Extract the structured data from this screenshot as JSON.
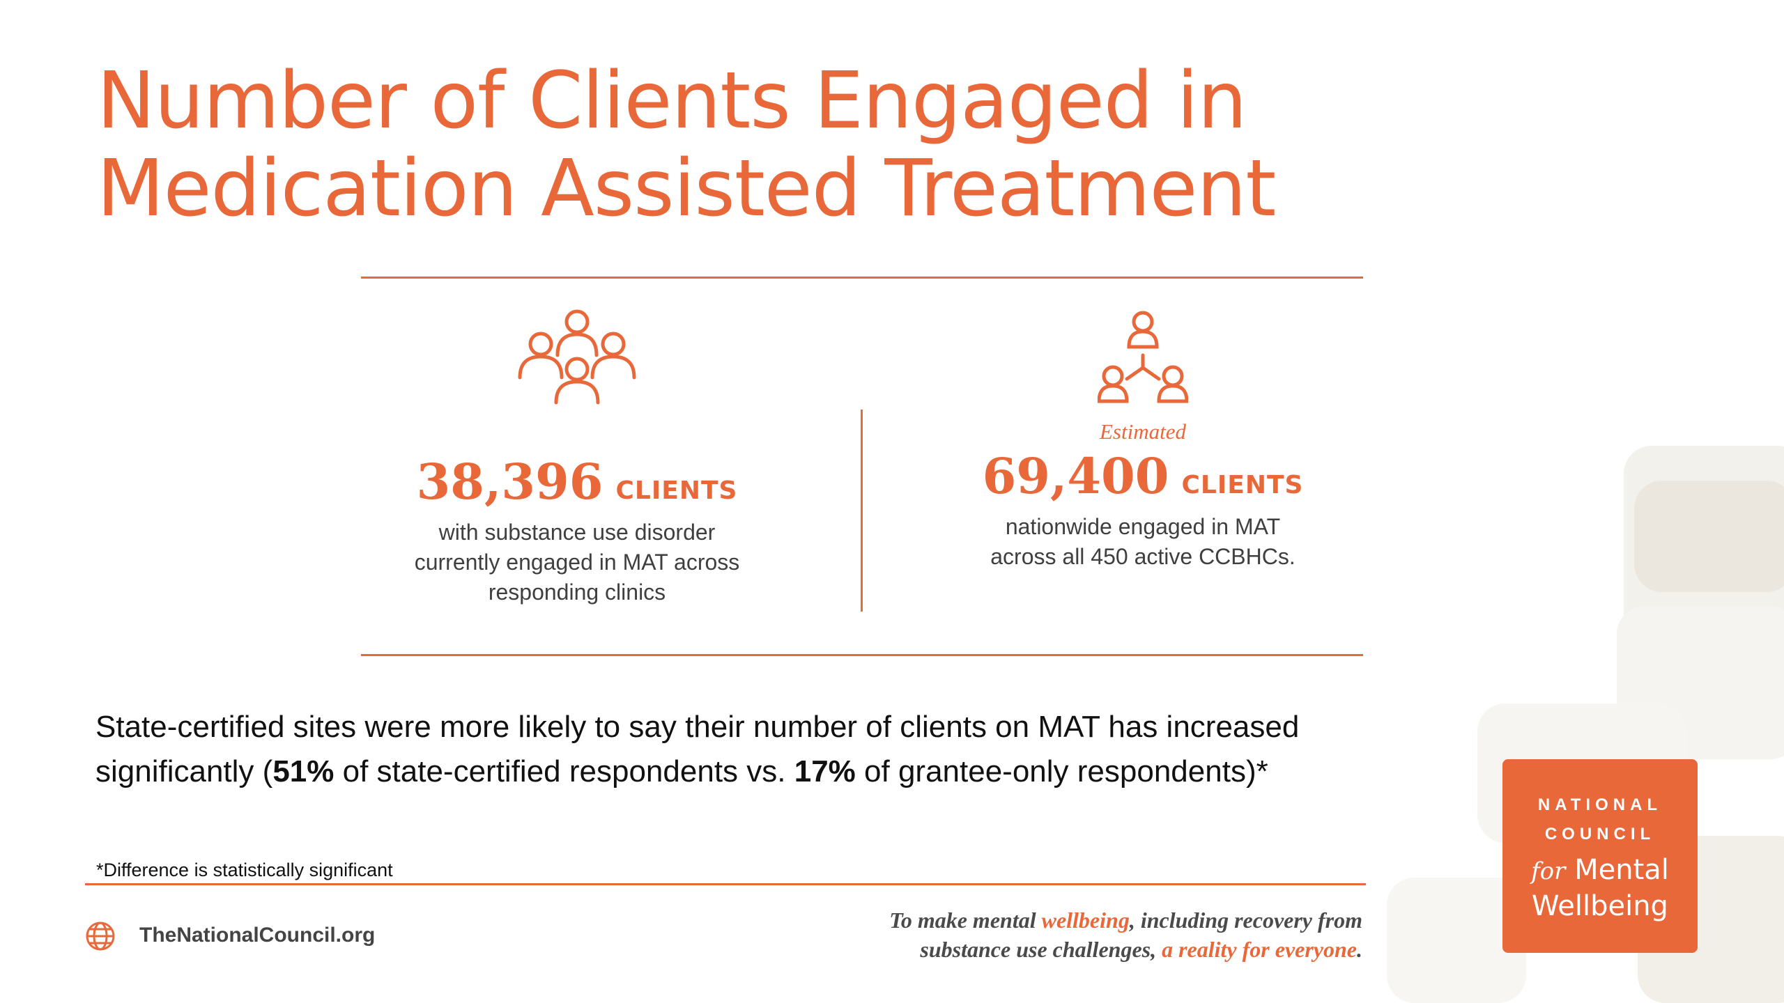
{
  "title": "Number of Clients Engaged in Medication Assisted Treatment",
  "left_stat": {
    "icon": "group-people-icon",
    "value": "38,396",
    "unit": "CLIENTS",
    "description": "with substance use disorder currently engaged in MAT across responding clinics"
  },
  "right_stat": {
    "icon": "network-people-icon",
    "qualifier": "Estimated",
    "value": "69,400",
    "unit": "CLIENTS",
    "description": "nationwide engaged in MAT across all 450 active CCBHCs."
  },
  "body": {
    "part1": "State-certified sites were more likely to say their number of clients on MAT has increased significantly (",
    "pct1": "51%",
    "part2": " of state-certified respondents vs. ",
    "pct2": "17%",
    "part3": " of grantee-only respondents)*"
  },
  "footnote": "*Difference is statistically significant",
  "footer": {
    "website": "TheNationalCouncil.org",
    "website_icon": "globe-icon",
    "tagline_1": "To make mental ",
    "tagline_accent_1": "wellbeing",
    "tagline_2": ", including recovery from substance use challenges, ",
    "tagline_accent_2": "a reality for everyone",
    "tagline_3": "."
  },
  "logo": {
    "line1": "NATIONAL",
    "line2": "COUNCIL",
    "line3_for": "for",
    "line3_rest": "Mental",
    "line4": "Wellbeing"
  },
  "colors": {
    "accent": "#E8683A",
    "text": "#111111"
  }
}
